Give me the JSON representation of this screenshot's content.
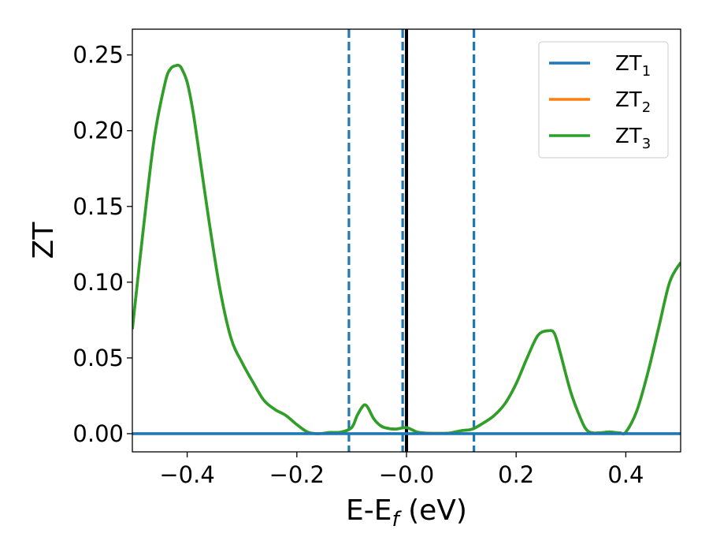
{
  "chart_data": {
    "type": "line",
    "title": "",
    "xlabel": "E-E",
    "xlabel_sub": "f",
    "xlabel_unit": " (eV)",
    "ylabel": "ZT",
    "xlim": [
      -0.5,
      0.5
    ],
    "ylim": [
      -0.012,
      0.267
    ],
    "xticks": [
      -0.4,
      -0.2,
      0.0,
      0.2,
      0.4
    ],
    "xtick_labels": [
      "−0.4",
      "−0.2",
      "−0.0",
      "0.2",
      "0.4"
    ],
    "yticks": [
      0.0,
      0.05,
      0.1,
      0.15,
      0.2,
      0.25
    ],
    "ytick_labels": [
      "0.00",
      "0.05",
      "0.10",
      "0.15",
      "0.20",
      "0.25"
    ],
    "grid": false,
    "legend_position": "top-right",
    "vertical_lines": [
      {
        "x": -0.105,
        "style": "dashed",
        "color": "#1f77b4"
      },
      {
        "x": -0.007,
        "style": "dashed",
        "color": "#1f77b4"
      },
      {
        "x": 0.123,
        "style": "dashed",
        "color": "#1f77b4"
      },
      {
        "x": 0.0,
        "style": "solid",
        "color": "#000000"
      }
    ],
    "series": [
      {
        "name": "ZT",
        "name_sub": "1",
        "color": "#1f77b4",
        "x": [
          -0.5,
          0.5
        ],
        "y": [
          0.0,
          0.0
        ]
      },
      {
        "name": "ZT",
        "name_sub": "2",
        "color": "#ff7f0e",
        "x": [
          -0.5,
          -0.48,
          -0.46,
          -0.44,
          -0.43,
          -0.42,
          -0.415,
          -0.41,
          -0.4,
          -0.39,
          -0.38,
          -0.36,
          -0.34,
          -0.32,
          -0.3,
          -0.28,
          -0.26,
          -0.24,
          -0.22,
          -0.2,
          -0.18,
          -0.16,
          -0.14,
          -0.12,
          -0.1,
          -0.09,
          -0.08,
          -0.075,
          -0.07,
          -0.06,
          -0.05,
          -0.04,
          -0.02,
          0.0,
          0.02,
          0.04,
          0.06,
          0.08,
          0.1,
          0.12,
          0.14,
          0.16,
          0.18,
          0.2,
          0.22,
          0.24,
          0.26,
          0.27,
          0.28,
          0.3,
          0.32,
          0.33,
          0.34,
          0.35,
          0.36,
          0.37,
          0.38,
          0.39,
          0.4,
          0.42,
          0.44,
          0.46,
          0.48,
          0.5
        ],
        "y": [
          0.069,
          0.135,
          0.195,
          0.232,
          0.241,
          0.243,
          0.243,
          0.241,
          0.232,
          0.214,
          0.19,
          0.14,
          0.095,
          0.063,
          0.047,
          0.034,
          0.022,
          0.016,
          0.012,
          0.006,
          0.001,
          0.0,
          0.0008,
          0.001,
          0.004,
          0.012,
          0.018,
          0.019,
          0.017,
          0.01,
          0.006,
          0.004,
          0.003,
          0.004,
          0.001,
          0.0003,
          0.0002,
          0.0005,
          0.002,
          0.003,
          0.007,
          0.012,
          0.02,
          0.033,
          0.05,
          0.065,
          0.068,
          0.066,
          0.054,
          0.027,
          0.008,
          0.002,
          0.0005,
          0.0005,
          0.0008,
          0.0012,
          0.0008,
          0.0005,
          0.001,
          0.015,
          0.04,
          0.07,
          0.1,
          0.113
        ]
      },
      {
        "name": "ZT",
        "name_sub": "3",
        "color": "#2ca02c",
        "x": [
          -0.5,
          -0.48,
          -0.46,
          -0.44,
          -0.43,
          -0.42,
          -0.415,
          -0.41,
          -0.4,
          -0.39,
          -0.38,
          -0.36,
          -0.34,
          -0.32,
          -0.3,
          -0.28,
          -0.26,
          -0.24,
          -0.22,
          -0.2,
          -0.18,
          -0.16,
          -0.14,
          -0.12,
          -0.1,
          -0.09,
          -0.08,
          -0.075,
          -0.07,
          -0.06,
          -0.05,
          -0.04,
          -0.02,
          0.0,
          0.02,
          0.04,
          0.06,
          0.08,
          0.1,
          0.12,
          0.14,
          0.16,
          0.18,
          0.2,
          0.22,
          0.24,
          0.26,
          0.27,
          0.28,
          0.3,
          0.32,
          0.33,
          0.34,
          0.35,
          0.36,
          0.37,
          0.38,
          0.39,
          0.4,
          0.42,
          0.44,
          0.46,
          0.48,
          0.5
        ],
        "y": [
          0.069,
          0.135,
          0.195,
          0.232,
          0.241,
          0.243,
          0.243,
          0.241,
          0.232,
          0.214,
          0.19,
          0.14,
          0.095,
          0.063,
          0.047,
          0.034,
          0.022,
          0.016,
          0.012,
          0.006,
          0.001,
          0.0,
          0.0008,
          0.001,
          0.004,
          0.012,
          0.018,
          0.019,
          0.017,
          0.01,
          0.006,
          0.004,
          0.003,
          0.004,
          0.001,
          0.0003,
          0.0002,
          0.0005,
          0.002,
          0.003,
          0.007,
          0.012,
          0.02,
          0.033,
          0.05,
          0.065,
          0.068,
          0.066,
          0.054,
          0.027,
          0.008,
          0.002,
          0.0005,
          0.0005,
          0.0008,
          0.0012,
          0.0008,
          0.0005,
          0.001,
          0.015,
          0.04,
          0.07,
          0.1,
          0.113
        ]
      }
    ]
  }
}
